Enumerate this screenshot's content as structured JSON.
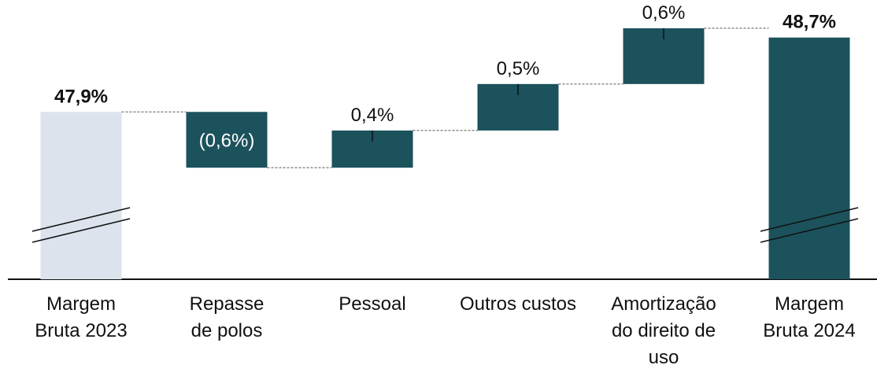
{
  "chart_data": {
    "type": "waterfall",
    "categories": [
      "Margem\nBruta 2023",
      "Repasse\nde polos",
      "Pessoal",
      "Outros custos",
      "Amortização\ndo direito de\nuso",
      "Margem\nBruta 2024"
    ],
    "values": [
      47.9,
      -0.6,
      0.4,
      0.5,
      0.6,
      48.7
    ],
    "value_labels": [
      "47,9%",
      "(0,6%)",
      "0,4%",
      "0,5%",
      "0,6%",
      "48,7%"
    ],
    "colors": [
      "#dce3ec",
      "#1b525c",
      "#1b525c",
      "#1b525c",
      "#1b525c",
      "#1b525c"
    ],
    "ylim": [
      46.1,
      48.85
    ]
  }
}
